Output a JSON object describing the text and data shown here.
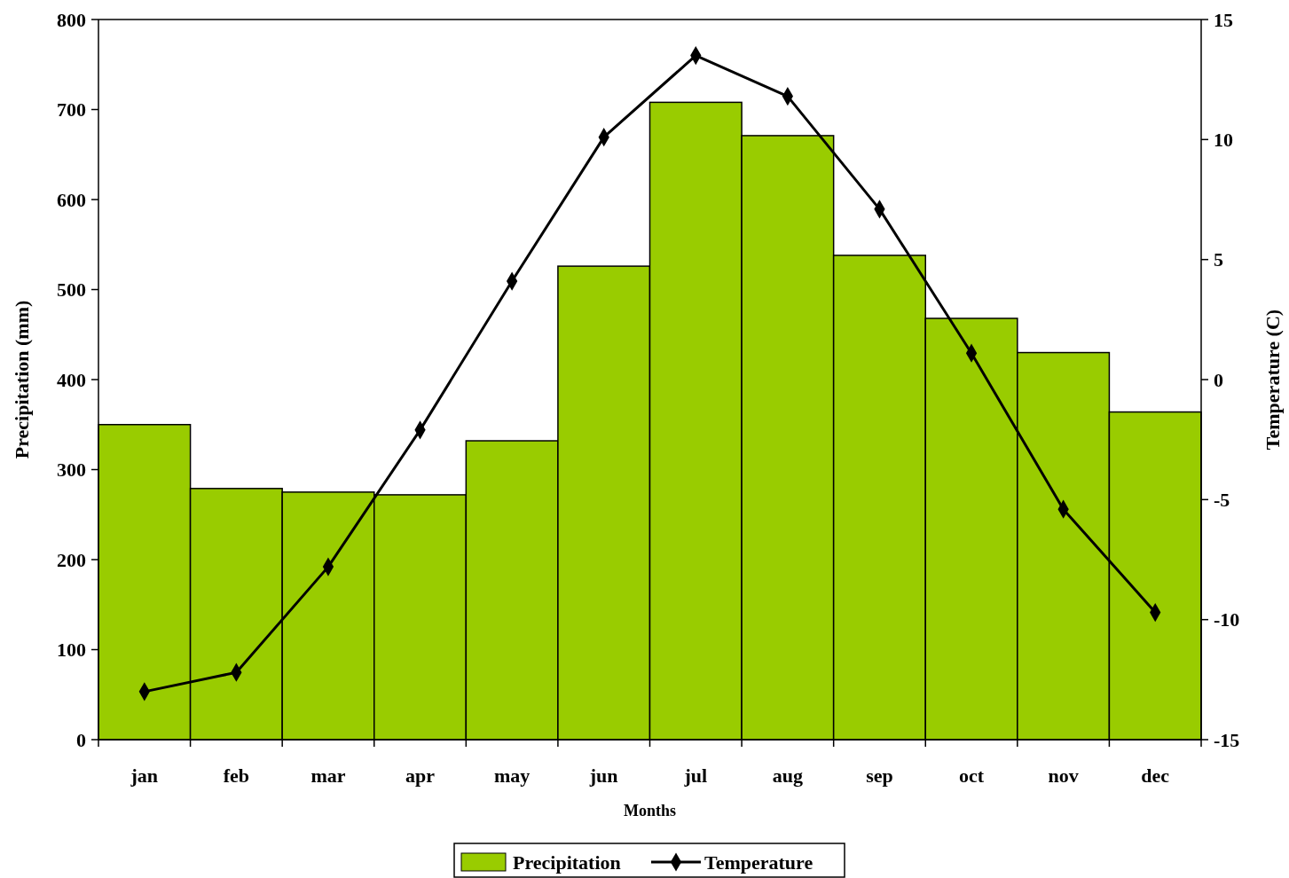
{
  "chart_data": {
    "type": "bar",
    "xlabel": "Months",
    "ylabel": "Precipitation (mm)",
    "y2label": "Temperature (C)",
    "categories": [
      "jan",
      "feb",
      "mar",
      "apr",
      "may",
      "jun",
      "jul",
      "aug",
      "sep",
      "oct",
      "nov",
      "dec"
    ],
    "series": [
      {
        "name": "Precipitation",
        "color": "#99cc00",
        "values": [
          350,
          279,
          275,
          272,
          332,
          526,
          708,
          671,
          538,
          468,
          430,
          364
        ]
      },
      {
        "name": "Temperature",
        "type": "line",
        "axis": "y2",
        "color": "#000000",
        "marker": "diamond",
        "line_style": "solid",
        "values": [
          -13.0,
          -12.2,
          -7.8,
          -2.1,
          4.1,
          10.1,
          13.5,
          11.8,
          7.1,
          1.1,
          -5.4,
          -9.7
        ]
      }
    ],
    "ylim": [
      0,
      800
    ],
    "yticks": [
      0,
      100,
      200,
      300,
      400,
      500,
      600,
      700,
      800
    ],
    "y2lim": [
      -15,
      15
    ],
    "y2ticks": [
      -15,
      -10,
      -5,
      0,
      5,
      10,
      15
    ],
    "legend": "bottom"
  }
}
